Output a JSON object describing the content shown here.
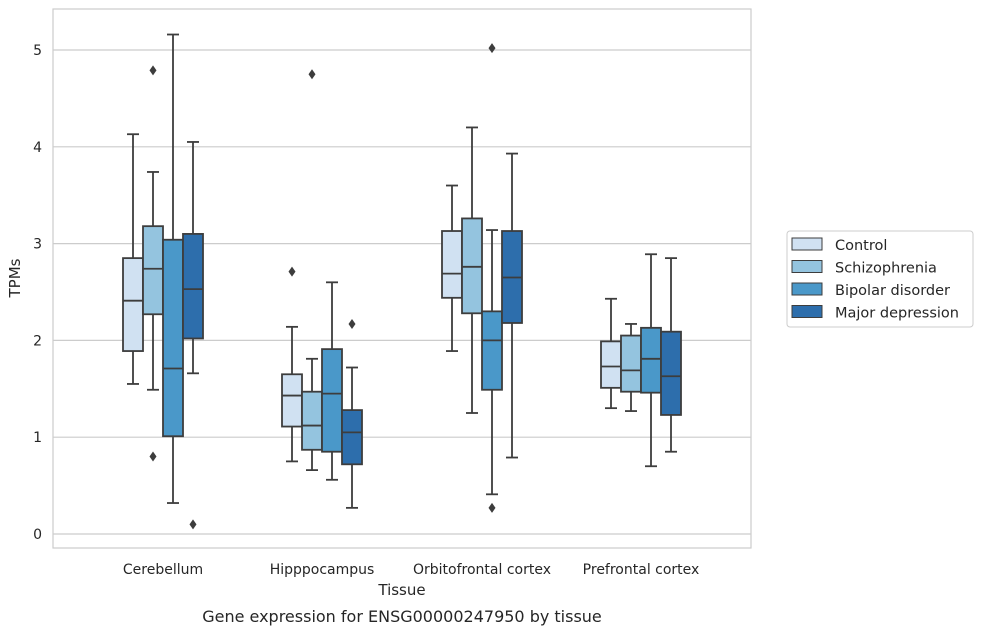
{
  "chart_data": {
    "type": "box",
    "title": "",
    "caption": "Gene expression for ENSG00000247950 by tissue",
    "xlabel": "Tissue",
    "ylabel": "TPMs",
    "ylim": [
      -0.15,
      5.4
    ],
    "yticks": [
      0,
      1,
      2,
      3,
      4,
      5
    ],
    "grid": "horizontal",
    "legend_position": "right",
    "categories": [
      "Cerebellum",
      "Hipppocampus",
      "Orbitofrontal cortex",
      "Prefrontal cortex"
    ],
    "series": [
      {
        "name": "Control",
        "color": "#d0e1f2",
        "boxes": [
          {
            "whislo": 1.55,
            "q1": 1.89,
            "med": 2.41,
            "q3": 2.85,
            "whishi": 4.13,
            "fliers": []
          },
          {
            "whislo": 0.75,
            "q1": 1.11,
            "med": 1.43,
            "q3": 1.65,
            "whishi": 2.14,
            "fliers": [
              2.71
            ]
          },
          {
            "whislo": 1.89,
            "q1": 2.44,
            "med": 2.69,
            "q3": 3.13,
            "whishi": 3.6,
            "fliers": []
          },
          {
            "whislo": 1.3,
            "q1": 1.51,
            "med": 1.73,
            "q3": 1.99,
            "whishi": 2.43,
            "fliers": []
          }
        ]
      },
      {
        "name": "Schizophrenia",
        "color": "#94c4df",
        "boxes": [
          {
            "whislo": 1.49,
            "q1": 2.27,
            "med": 2.74,
            "q3": 3.18,
            "whishi": 3.74,
            "fliers": [
              4.79,
              0.8
            ]
          },
          {
            "whislo": 0.66,
            "q1": 0.87,
            "med": 1.12,
            "q3": 1.47,
            "whishi": 1.81,
            "fliers": [
              4.75
            ]
          },
          {
            "whislo": 1.25,
            "q1": 2.28,
            "med": 2.76,
            "q3": 3.26,
            "whishi": 4.2,
            "fliers": []
          },
          {
            "whislo": 1.27,
            "q1": 1.47,
            "med": 1.69,
            "q3": 2.05,
            "whishi": 2.17,
            "fliers": []
          }
        ]
      },
      {
        "name": "Bipolar disorder",
        "color": "#4a98c9",
        "boxes": [
          {
            "whislo": 0.32,
            "q1": 1.01,
            "med": 1.71,
            "q3": 3.04,
            "whishi": 5.16,
            "fliers": []
          },
          {
            "whislo": 0.56,
            "q1": 0.85,
            "med": 1.45,
            "q3": 1.91,
            "whishi": 2.6,
            "fliers": []
          },
          {
            "whislo": 0.41,
            "q1": 1.49,
            "med": 2.0,
            "q3": 2.3,
            "whishi": 3.14,
            "fliers": [
              5.02,
              0.27
            ]
          },
          {
            "whislo": 0.7,
            "q1": 1.46,
            "med": 1.81,
            "q3": 2.13,
            "whishi": 2.89,
            "fliers": []
          }
        ]
      },
      {
        "name": "Major depression",
        "color": "#2d6eac",
        "boxes": [
          {
            "whislo": 1.66,
            "q1": 2.02,
            "med": 2.53,
            "q3": 3.1,
            "whishi": 4.05,
            "fliers": [
              0.1
            ]
          },
          {
            "whislo": 0.27,
            "q1": 0.72,
            "med": 1.05,
            "q3": 1.28,
            "whishi": 1.72,
            "fliers": [
              2.17
            ]
          },
          {
            "whislo": 0.79,
            "q1": 2.18,
            "med": 2.65,
            "q3": 3.13,
            "whishi": 3.93,
            "fliers": []
          },
          {
            "whislo": 0.85,
            "q1": 1.23,
            "med": 1.63,
            "q3": 2.09,
            "whishi": 2.85,
            "fliers": []
          }
        ]
      }
    ]
  }
}
